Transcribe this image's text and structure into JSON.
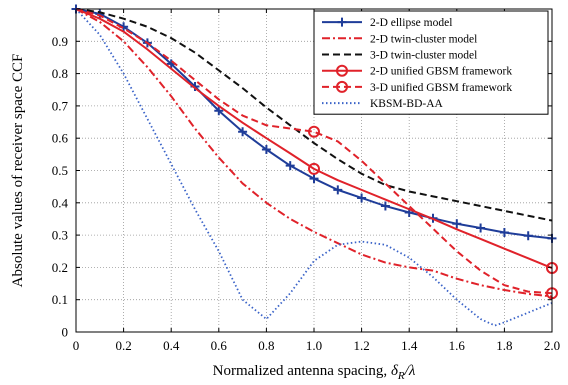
{
  "chart_data": {
    "type": "line",
    "xlabel_text": "Normalized antenna spacing, ",
    "xlabel_symbol": "δ",
    "xlabel_sub": "R",
    "xlabel_tail": "/λ",
    "ylabel": "Absolute values of receiver space CCF",
    "xlim": [
      0,
      2.0
    ],
    "ylim": [
      0,
      1.0
    ],
    "xticks": [
      "0",
      "0.2",
      "0.4",
      "0.6",
      "0.8",
      "1.0",
      "1.2",
      "1.4",
      "1.6",
      "1.8",
      "2.0"
    ],
    "yticks": [
      "0",
      "0.1",
      "0.2",
      "0.3",
      "0.4",
      "0.5",
      "0.6",
      "0.7",
      "0.8",
      "0.9"
    ],
    "grid": true,
    "legend_position": "top-right",
    "series": [
      {
        "name": "2-D ellipse model",
        "color": "#1f3d99",
        "style": "solid",
        "marker": "plus",
        "x": [
          0,
          0.1,
          0.2,
          0.3,
          0.4,
          0.5,
          0.6,
          0.7,
          0.8,
          0.9,
          1.0,
          1.1,
          1.2,
          1.3,
          1.4,
          1.5,
          1.6,
          1.7,
          1.8,
          1.9,
          2.0
        ],
        "y": [
          1.0,
          0.985,
          0.945,
          0.895,
          0.83,
          0.76,
          0.685,
          0.62,
          0.565,
          0.515,
          0.475,
          0.44,
          0.415,
          0.39,
          0.37,
          0.352,
          0.335,
          0.322,
          0.308,
          0.298,
          0.29
        ]
      },
      {
        "name": "2-D twin-cluster model",
        "color": "#e0222a",
        "style": "dashdot",
        "marker": "none",
        "x": [
          0,
          0.1,
          0.2,
          0.3,
          0.4,
          0.5,
          0.6,
          0.7,
          0.8,
          0.9,
          1.0,
          1.1,
          1.2,
          1.3,
          1.4,
          1.5,
          1.6,
          1.7,
          1.8,
          1.9,
          2.0
        ],
        "y": [
          1.0,
          0.96,
          0.9,
          0.82,
          0.73,
          0.63,
          0.54,
          0.46,
          0.4,
          0.35,
          0.31,
          0.275,
          0.24,
          0.215,
          0.2,
          0.19,
          0.165,
          0.145,
          0.13,
          0.118,
          0.11
        ]
      },
      {
        "name": "3-D twin-cluster model",
        "color": "#111111",
        "style": "dashed",
        "marker": "none",
        "x": [
          0,
          0.1,
          0.2,
          0.3,
          0.4,
          0.5,
          0.6,
          0.7,
          0.8,
          0.9,
          1.0,
          1.1,
          1.2,
          1.3,
          1.4,
          1.5,
          1.6,
          1.7,
          1.8,
          1.9,
          2.0
        ],
        "y": [
          1.0,
          0.99,
          0.97,
          0.945,
          0.91,
          0.865,
          0.81,
          0.755,
          0.695,
          0.64,
          0.585,
          0.535,
          0.49,
          0.455,
          0.435,
          0.42,
          0.405,
          0.39,
          0.375,
          0.36,
          0.345
        ]
      },
      {
        "name": "2-D unified GBSM framework",
        "color": "#e0222a",
        "style": "solid",
        "marker": "circle",
        "x": [
          0,
          0.1,
          0.2,
          0.3,
          0.4,
          0.5,
          0.6,
          0.7,
          0.8,
          0.9,
          1.0,
          1.1,
          1.2,
          1.3,
          1.4,
          1.5,
          1.6,
          1.7,
          1.8,
          1.9,
          2.0
        ],
        "y": [
          1.0,
          0.97,
          0.93,
          0.875,
          0.815,
          0.755,
          0.7,
          0.648,
          0.6,
          0.553,
          0.505,
          0.47,
          0.44,
          0.41,
          0.38,
          0.35,
          0.318,
          0.288,
          0.258,
          0.228,
          0.198
        ],
        "marker_indices": [
          10,
          20
        ]
      },
      {
        "name": "3-D unified GBSM framework",
        "color": "#e0222a",
        "style": "dashed",
        "marker": "circle",
        "x": [
          0,
          0.1,
          0.2,
          0.3,
          0.4,
          0.5,
          0.6,
          0.7,
          0.8,
          0.9,
          1.0,
          1.1,
          1.2,
          1.3,
          1.4,
          1.5,
          1.6,
          1.7,
          1.8,
          1.9,
          2.0
        ],
        "y": [
          1.0,
          0.98,
          0.94,
          0.895,
          0.84,
          0.78,
          0.72,
          0.67,
          0.64,
          0.63,
          0.62,
          0.59,
          0.53,
          0.46,
          0.39,
          0.32,
          0.25,
          0.19,
          0.145,
          0.125,
          0.12
        ],
        "marker_indices": [
          10,
          20
        ]
      },
      {
        "name": "KBSM-BD-AA",
        "color": "#3a63c8",
        "style": "dotted",
        "marker": "none",
        "x": [
          0,
          0.1,
          0.2,
          0.3,
          0.4,
          0.5,
          0.6,
          0.7,
          0.8,
          0.9,
          1.0,
          1.1,
          1.2,
          1.3,
          1.4,
          1.5,
          1.6,
          1.7,
          1.76,
          1.8,
          1.9,
          2.0
        ],
        "y": [
          1.0,
          0.92,
          0.8,
          0.66,
          0.52,
          0.38,
          0.25,
          0.1,
          0.04,
          0.12,
          0.22,
          0.27,
          0.28,
          0.27,
          0.23,
          0.17,
          0.1,
          0.04,
          0.02,
          0.03,
          0.06,
          0.09
        ]
      }
    ]
  }
}
